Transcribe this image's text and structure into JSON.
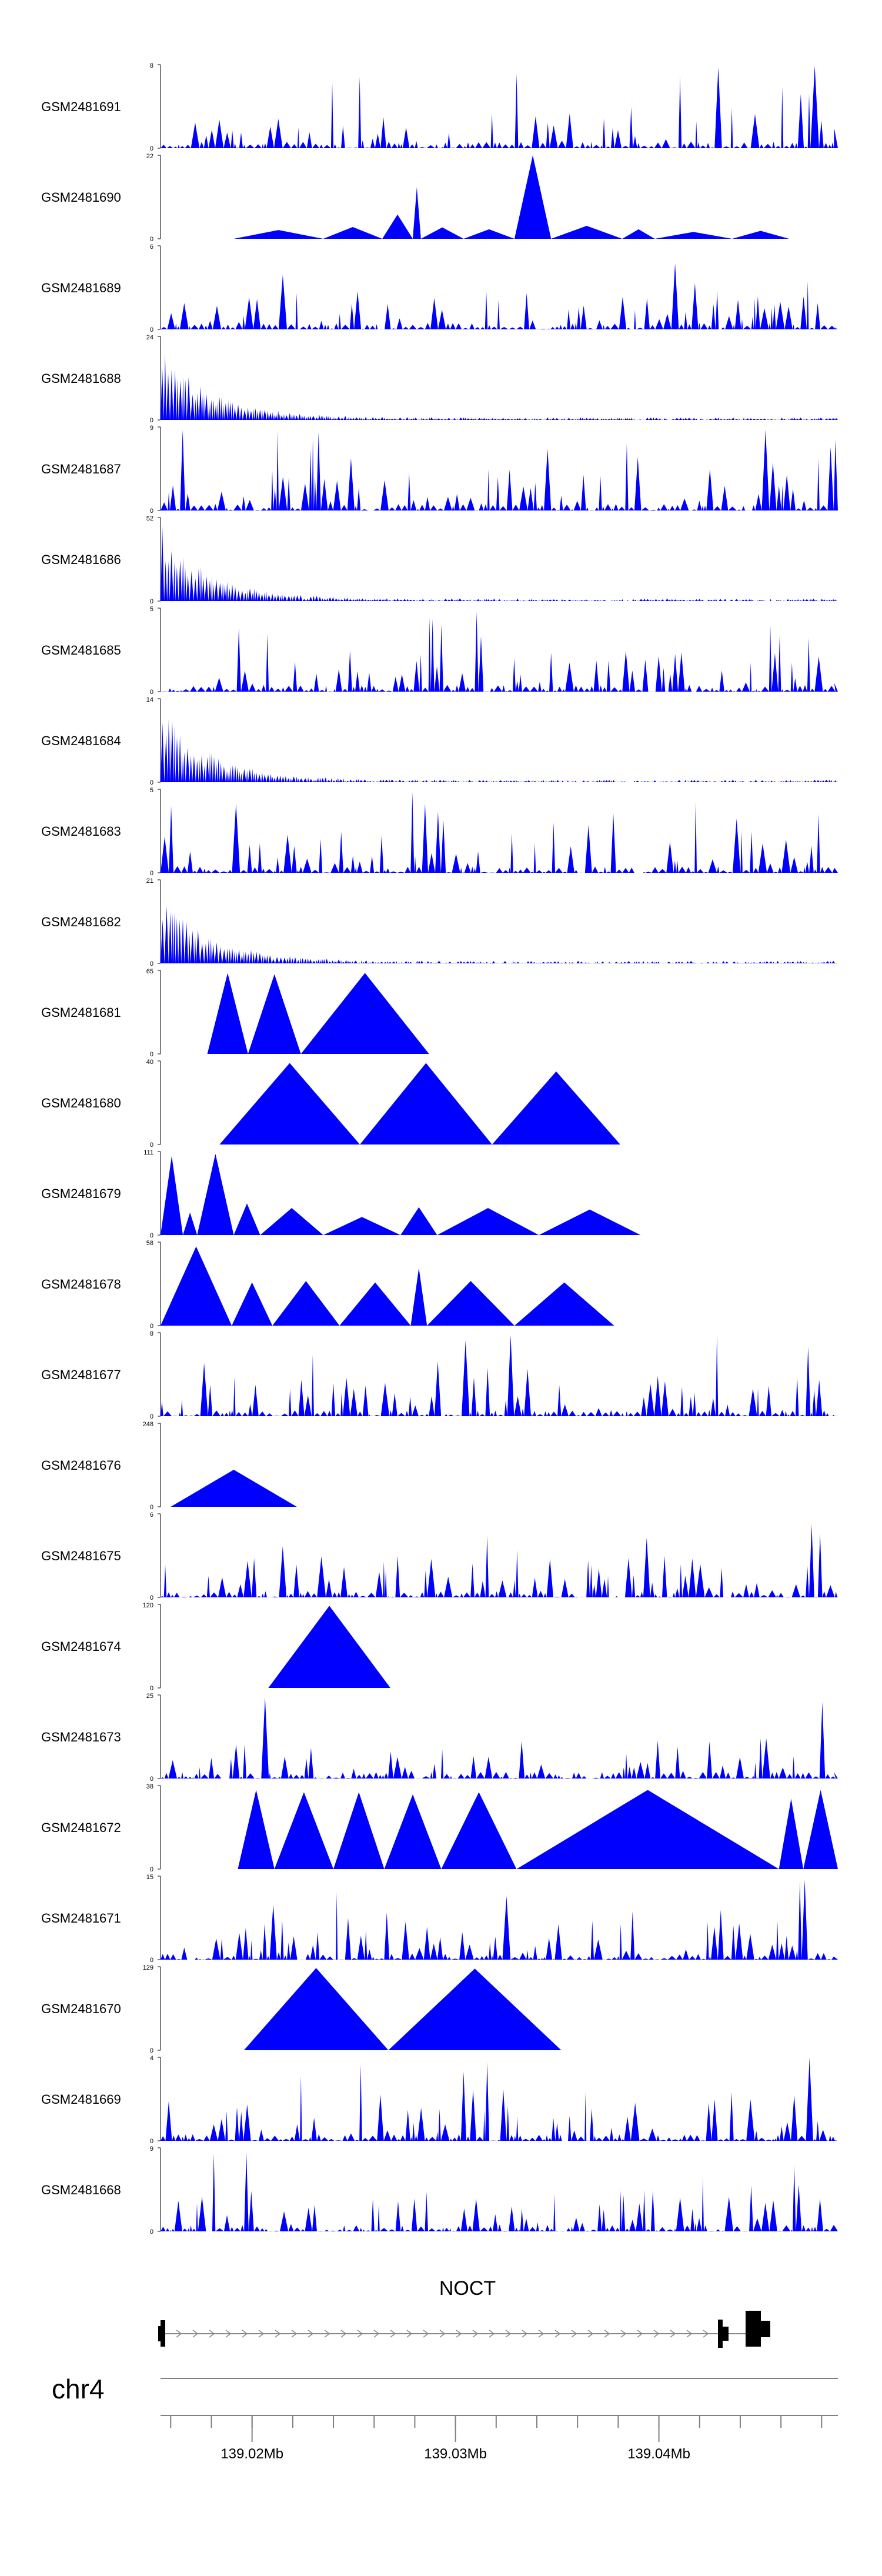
{
  "chart_data": {
    "type": "area",
    "title": "",
    "xlabel": "",
    "ylabel": "",
    "xlim": [
      139.0155,
      139.0488
    ],
    "x_unit": "Mb",
    "chromosome": "chr4",
    "gene": {
      "name": "NOCT",
      "strand": "+"
    },
    "axis_ticks": [
      139.02,
      139.03,
      139.04
    ],
    "axis_tick_labels": [
      "139.02Mb",
      "139.03Mb",
      "139.04Mb"
    ],
    "tracks": [
      {
        "name": "GSM2481691",
        "ymax": 8,
        "style": "spiky"
      },
      {
        "name": "GSM2481690",
        "ymax": 22,
        "style": "peaks",
        "peaks": [
          [
            139.0191,
            2.3,
            139.0235
          ],
          [
            139.0235,
            3.1,
            139.0264
          ],
          [
            139.0264,
            6.4,
            139.0279
          ],
          [
            139.0279,
            13.6,
            139.0283
          ],
          [
            139.0283,
            3.0,
            139.0304
          ],
          [
            139.0304,
            2.5,
            139.0329
          ],
          [
            139.0329,
            22,
            139.0347
          ],
          [
            139.0347,
            3.4,
            139.0382
          ],
          [
            139.0382,
            2.5,
            139.0398
          ],
          [
            139.0398,
            1.8,
            139.0436
          ],
          [
            139.0436,
            2.1,
            139.0464
          ]
        ]
      },
      {
        "name": "GSM2481689",
        "ymax": 6,
        "style": "spiky"
      },
      {
        "name": "GSM2481688",
        "ymax": 24,
        "style": "decay"
      },
      {
        "name": "GSM2481687",
        "ymax": 9,
        "style": "spiky"
      },
      {
        "name": "GSM2481686",
        "ymax": 52,
        "style": "decay"
      },
      {
        "name": "GSM2481685",
        "ymax": 5,
        "style": "spiky"
      },
      {
        "name": "GSM2481684",
        "ymax": 14,
        "style": "decay"
      },
      {
        "name": "GSM2481683",
        "ymax": 5,
        "style": "spiky"
      },
      {
        "name": "GSM2481682",
        "ymax": 21,
        "style": "decay"
      },
      {
        "name": "GSM2481681",
        "ymax": 65,
        "style": "peaks",
        "peaks": [
          [
            139.0178,
            63,
            139.0198
          ],
          [
            139.0198,
            62,
            139.0224
          ],
          [
            139.0224,
            63,
            139.0287
          ]
        ]
      },
      {
        "name": "GSM2481680",
        "ymax": 40,
        "style": "peaks",
        "peaks": [
          [
            139.0184,
            39,
            139.0253
          ],
          [
            139.0253,
            39,
            139.0318
          ],
          [
            139.0318,
            35,
            139.0381
          ]
        ]
      },
      {
        "name": "GSM2481679",
        "ymax": 111,
        "style": "peaks",
        "peaks": [
          [
            139.0155,
            105,
            139.0166
          ],
          [
            139.0166,
            30,
            139.0173
          ],
          [
            139.0173,
            108,
            139.0191
          ],
          [
            139.0191,
            42,
            139.0204
          ],
          [
            139.0204,
            36,
            139.0235
          ],
          [
            139.0235,
            24,
            139.0273
          ],
          [
            139.0273,
            37,
            139.0291
          ],
          [
            139.0291,
            36,
            139.0341
          ],
          [
            139.0341,
            34,
            139.0391
          ]
        ]
      },
      {
        "name": "GSM2481678",
        "ymax": 58,
        "style": "peaks",
        "peaks": [
          [
            139.0155,
            55,
            139.019
          ],
          [
            139.019,
            30,
            139.021
          ],
          [
            139.021,
            31,
            139.0243
          ],
          [
            139.0243,
            30,
            139.0278
          ],
          [
            139.0278,
            40,
            139.0286
          ],
          [
            139.0286,
            31,
            139.0329
          ],
          [
            139.0329,
            30,
            139.0378
          ]
        ]
      },
      {
        "name": "GSM2481677",
        "ymax": 8,
        "style": "spiky"
      },
      {
        "name": "GSM2481676",
        "ymax": 248,
        "style": "peaks",
        "peaks": [
          [
            139.016,
            110,
            139.0222
          ]
        ]
      },
      {
        "name": "GSM2481675",
        "ymax": 6,
        "style": "spiky"
      },
      {
        "name": "GSM2481674",
        "ymax": 120,
        "style": "peaks",
        "peaks": [
          [
            139.0208,
            118,
            139.0268
          ]
        ]
      },
      {
        "name": "GSM2481673",
        "ymax": 25,
        "style": "spiky"
      },
      {
        "name": "GSM2481672",
        "ymax": 38,
        "style": "peaks",
        "peaks": [
          [
            139.0193,
            36,
            139.0211
          ],
          [
            139.0211,
            35,
            139.024
          ],
          [
            139.024,
            35,
            139.0265
          ],
          [
            139.0265,
            34,
            139.0293
          ],
          [
            139.0293,
            35,
            139.033
          ],
          [
            139.033,
            36,
            139.0459
          ],
          [
            139.0459,
            32,
            139.0471
          ],
          [
            139.0471,
            36,
            139.0488
          ]
        ]
      },
      {
        "name": "GSM2481671",
        "ymax": 15,
        "style": "spiky"
      },
      {
        "name": "GSM2481670",
        "ymax": 129,
        "style": "peaks",
        "peaks": [
          [
            139.0196,
            127,
            139.0267
          ],
          [
            139.0267,
            126,
            139.0352
          ]
        ]
      },
      {
        "name": "GSM2481669",
        "ymax": 4,
        "style": "spiky"
      },
      {
        "name": "GSM2481668",
        "ymax": 9,
        "style": "spiky"
      }
    ]
  }
}
